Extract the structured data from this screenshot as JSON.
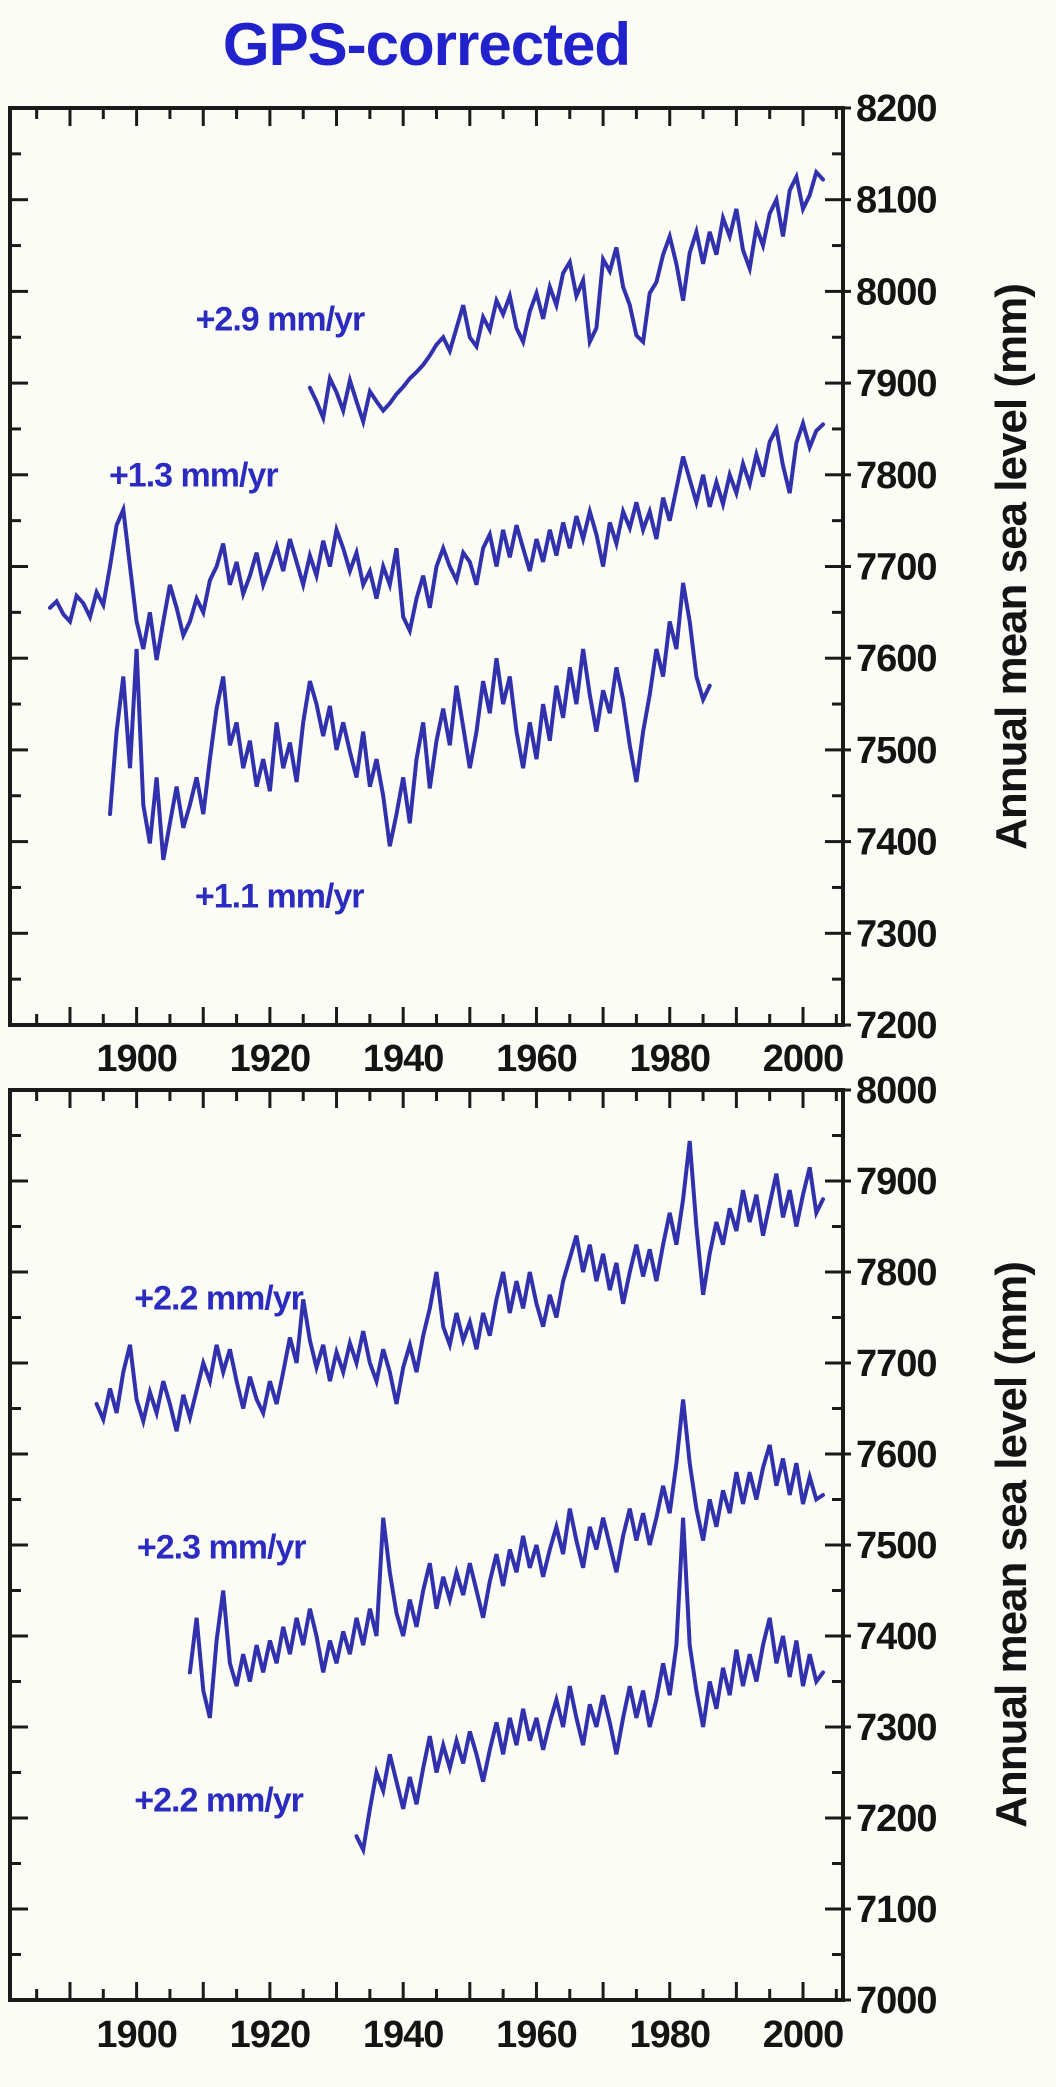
{
  "title": "GPS-corrected",
  "colors": {
    "line": "#3231ad",
    "title_text": "#2222cc",
    "annotation_text": "#2b2bc0",
    "axis_text": "#141414",
    "frame": "#1a1a1a",
    "background": "#fcfcf7"
  },
  "chart_data": [
    {
      "type": "line",
      "panel": "top",
      "title": "",
      "xlabel": "",
      "ylabel": "Annual mean sea level (mm)",
      "xlim": [
        1881,
        2006
      ],
      "ylim": [
        7200,
        8200
      ],
      "xticks": [
        1900,
        1920,
        1940,
        1960,
        1980,
        2000
      ],
      "yticks": [
        8200,
        8100,
        8000,
        7900,
        7800,
        7700,
        7600,
        7500,
        7400,
        7300,
        7200
      ],
      "x_minor_step": 5,
      "x_major_step": 10,
      "y_minor_step": 50,
      "grid": false,
      "legend": "none",
      "series": [
        {
          "name": "top-series-1",
          "label": "+2.9 mm/yr",
          "trend_mm_per_yr": 2.9,
          "label_anchor": {
            "year": 1921.5,
            "value": 7969
          },
          "x_start": 1926,
          "x_step": 1,
          "values": [
            7895,
            7880,
            7862,
            7905,
            7890,
            7870,
            7903,
            7880,
            7858,
            7891,
            7880,
            7870,
            7878,
            7888,
            7896,
            7905,
            7912,
            7920,
            7930,
            7942,
            7950,
            7935,
            7960,
            7985,
            7950,
            7940,
            7972,
            7958,
            7990,
            7975,
            7995,
            7960,
            7945,
            7978,
            7998,
            7970,
            8005,
            7985,
            8020,
            8032,
            7995,
            8012,
            7945,
            7960,
            8035,
            8022,
            8048,
            8005,
            7985,
            7952,
            7945,
            7998,
            8010,
            8040,
            8060,
            8030,
            7990,
            8042,
            8065,
            8030,
            8065,
            8040,
            8080,
            8060,
            8090,
            8045,
            8025,
            8070,
            8050,
            8085,
            8100,
            8060,
            8110,
            8125,
            8090,
            8105,
            8130,
            8122
          ]
        },
        {
          "name": "top-series-2",
          "label": "+1.3 mm/yr",
          "trend_mm_per_yr": 1.3,
          "label_anchor": {
            "year": 1908.5,
            "value": 7799
          },
          "x_start": 1887,
          "x_step": 1,
          "values": [
            7655,
            7662,
            7648,
            7640,
            7668,
            7660,
            7645,
            7672,
            7658,
            7700,
            7745,
            7762,
            7700,
            7640,
            7610,
            7650,
            7598,
            7640,
            7680,
            7655,
            7625,
            7640,
            7665,
            7650,
            7685,
            7700,
            7725,
            7680,
            7705,
            7670,
            7690,
            7715,
            7680,
            7700,
            7722,
            7695,
            7730,
            7705,
            7680,
            7712,
            7690,
            7728,
            7700,
            7740,
            7720,
            7695,
            7715,
            7680,
            7695,
            7665,
            7700,
            7680,
            7720,
            7645,
            7630,
            7665,
            7690,
            7655,
            7700,
            7720,
            7700,
            7685,
            7715,
            7705,
            7680,
            7720,
            7735,
            7700,
            7740,
            7710,
            7745,
            7720,
            7695,
            7730,
            7705,
            7740,
            7712,
            7748,
            7720,
            7755,
            7730,
            7760,
            7735,
            7700,
            7748,
            7725,
            7760,
            7742,
            7770,
            7740,
            7760,
            7730,
            7775,
            7750,
            7785,
            7820,
            7795,
            7770,
            7800,
            7765,
            7792,
            7768,
            7800,
            7780,
            7812,
            7790,
            7822,
            7798,
            7836,
            7850,
            7810,
            7780,
            7835,
            7856,
            7830,
            7848,
            7855
          ]
        },
        {
          "name": "top-series-3",
          "label": "+1.1 mm/yr",
          "trend_mm_per_yr": 1.1,
          "label_anchor": {
            "year": 1921.4,
            "value": 7340
          },
          "x_start": 1896,
          "x_step": 1,
          "values": [
            7430,
            7520,
            7580,
            7480,
            7610,
            7440,
            7398,
            7470,
            7380,
            7420,
            7460,
            7415,
            7440,
            7470,
            7430,
            7490,
            7545,
            7580,
            7505,
            7530,
            7480,
            7510,
            7460,
            7490,
            7455,
            7530,
            7480,
            7508,
            7465,
            7530,
            7575,
            7550,
            7515,
            7548,
            7500,
            7530,
            7498,
            7470,
            7520,
            7460,
            7490,
            7450,
            7395,
            7430,
            7470,
            7420,
            7490,
            7530,
            7458,
            7510,
            7545,
            7505,
            7570,
            7525,
            7480,
            7520,
            7575,
            7540,
            7600,
            7550,
            7580,
            7520,
            7480,
            7530,
            7490,
            7550,
            7510,
            7570,
            7535,
            7590,
            7550,
            7610,
            7560,
            7520,
            7565,
            7540,
            7590,
            7555,
            7505,
            7465,
            7520,
            7560,
            7610,
            7580,
            7640,
            7610,
            7682,
            7640,
            7580,
            7555,
            7570
          ]
        }
      ]
    },
    {
      "type": "line",
      "panel": "bottom",
      "title": "",
      "xlabel": "",
      "ylabel": "Annual mean sea level (mm)",
      "xlim": [
        1881,
        2006
      ],
      "ylim": [
        7000,
        8000
      ],
      "xticks": [
        1900,
        1920,
        1940,
        1960,
        1980,
        2000
      ],
      "yticks": [
        8000,
        7900,
        7800,
        7700,
        7600,
        7500,
        7400,
        7300,
        7200,
        7100,
        7000
      ],
      "x_minor_step": 5,
      "x_major_step": 10,
      "y_minor_step": 50,
      "grid": false,
      "legend": "none",
      "series": [
        {
          "name": "bottom-series-1",
          "label": "+2.2 mm/yr",
          "trend_mm_per_yr": 2.2,
          "label_anchor": {
            "year": 1912.3,
            "value": 7770
          },
          "x_start": 1894,
          "x_step": 1,
          "values": [
            7655,
            7638,
            7672,
            7645,
            7690,
            7720,
            7660,
            7636,
            7668,
            7645,
            7680,
            7655,
            7625,
            7665,
            7640,
            7670,
            7700,
            7680,
            7720,
            7690,
            7715,
            7680,
            7650,
            7685,
            7660,
            7645,
            7680,
            7655,
            7690,
            7728,
            7700,
            7770,
            7725,
            7695,
            7720,
            7680,
            7712,
            7690,
            7722,
            7700,
            7735,
            7700,
            7680,
            7715,
            7690,
            7655,
            7695,
            7720,
            7690,
            7730,
            7760,
            7800,
            7740,
            7720,
            7755,
            7725,
            7745,
            7715,
            7755,
            7730,
            7770,
            7800,
            7755,
            7790,
            7760,
            7800,
            7765,
            7740,
            7775,
            7750,
            7790,
            7815,
            7840,
            7800,
            7830,
            7790,
            7820,
            7780,
            7810,
            7765,
            7800,
            7830,
            7795,
            7825,
            7790,
            7830,
            7865,
            7830,
            7880,
            7944,
            7850,
            7775,
            7820,
            7855,
            7830,
            7870,
            7845,
            7890,
            7855,
            7885,
            7840,
            7875,
            7908,
            7860,
            7890,
            7850,
            7885,
            7915,
            7865,
            7880
          ]
        },
        {
          "name": "bottom-series-2",
          "label": "+2.3 mm/yr",
          "trend_mm_per_yr": 2.3,
          "label_anchor": {
            "year": 1912.7,
            "value": 7497
          },
          "x_start": 1908,
          "x_step": 1,
          "values": [
            7360,
            7420,
            7340,
            7310,
            7395,
            7450,
            7370,
            7345,
            7380,
            7350,
            7390,
            7360,
            7395,
            7370,
            7410,
            7380,
            7420,
            7390,
            7430,
            7400,
            7360,
            7395,
            7370,
            7405,
            7380,
            7420,
            7390,
            7430,
            7400,
            7530,
            7470,
            7425,
            7400,
            7440,
            7410,
            7450,
            7480,
            7430,
            7465,
            7440,
            7470,
            7445,
            7480,
            7450,
            7420,
            7460,
            7490,
            7455,
            7495,
            7470,
            7510,
            7475,
            7500,
            7465,
            7495,
            7520,
            7490,
            7540,
            7505,
            7475,
            7520,
            7495,
            7530,
            7500,
            7470,
            7510,
            7540,
            7505,
            7535,
            7500,
            7530,
            7565,
            7535,
            7590,
            7660,
            7590,
            7540,
            7505,
            7550,
            7520,
            7560,
            7535,
            7580,
            7545,
            7580,
            7550,
            7585,
            7610,
            7565,
            7595,
            7555,
            7590,
            7545,
            7575,
            7550,
            7555
          ]
        },
        {
          "name": "bottom-series-3",
          "label": "+2.2 mm/yr",
          "trend_mm_per_yr": 2.2,
          "label_anchor": {
            "year": 1912.3,
            "value": 7219
          },
          "x_start": 1933,
          "x_step": 1,
          "values": [
            7180,
            7165,
            7210,
            7250,
            7230,
            7270,
            7240,
            7210,
            7245,
            7215,
            7255,
            7290,
            7250,
            7280,
            7255,
            7285,
            7260,
            7295,
            7270,
            7240,
            7275,
            7305,
            7270,
            7310,
            7280,
            7320,
            7285,
            7310,
            7275,
            7305,
            7330,
            7300,
            7345,
            7310,
            7280,
            7325,
            7300,
            7335,
            7305,
            7270,
            7310,
            7345,
            7310,
            7340,
            7300,
            7330,
            7370,
            7335,
            7390,
            7530,
            7390,
            7340,
            7300,
            7350,
            7320,
            7365,
            7335,
            7385,
            7345,
            7380,
            7350,
            7390,
            7420,
            7370,
            7400,
            7355,
            7395,
            7345,
            7380,
            7350,
            7360
          ]
        }
      ]
    }
  ]
}
